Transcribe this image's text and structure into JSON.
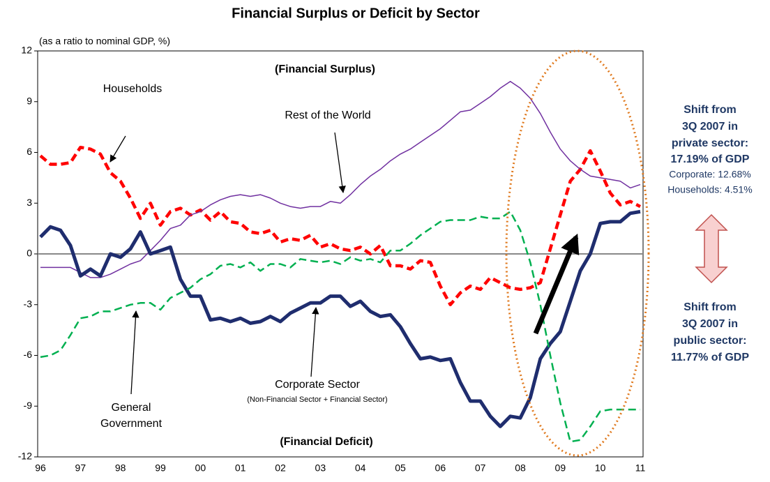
{
  "chart_data": {
    "type": "line",
    "title": "Financial Surplus or Deficit by Sector",
    "ylabel": "(as a ratio to nominal GDP, %)",
    "categories": [
      "96",
      null,
      null,
      null,
      "97",
      null,
      null,
      null,
      "98",
      null,
      null,
      null,
      "99",
      null,
      null,
      null,
      "00",
      null,
      null,
      null,
      "01",
      null,
      null,
      null,
      "02",
      null,
      null,
      null,
      "03",
      null,
      null,
      null,
      "04",
      null,
      null,
      null,
      "05",
      null,
      null,
      null,
      "06",
      null,
      null,
      null,
      "07",
      null,
      null,
      null,
      "08",
      null,
      null,
      null,
      "09",
      null,
      null,
      null,
      "10",
      null,
      null,
      null,
      "11"
    ],
    "ylim": [
      -12,
      12
    ],
    "yticks": [
      -12,
      -9,
      -6,
      -3,
      0,
      3,
      6,
      9,
      12
    ],
    "series": [
      {
        "name": "Households",
        "color": "#ff0000",
        "values": [
          5.8,
          5.3,
          5.3,
          5.4,
          6.3,
          6.2,
          5.9,
          4.8,
          4.3,
          3.3,
          2.1,
          3.0,
          1.7,
          2.5,
          2.7,
          2.3,
          2.6,
          2.0,
          2.5,
          1.9,
          1.8,
          1.3,
          1.2,
          1.4,
          0.7,
          0.9,
          0.8,
          1.1,
          0.4,
          0.6,
          0.3,
          0.2,
          0.4,
          0.0,
          0.5,
          -0.7,
          -0.7,
          -0.9,
          -0.4,
          -0.5,
          -1.9,
          -3.0,
          -2.3,
          -1.9,
          -2.1,
          -1.4,
          -1.7,
          -2.0,
          -2.1,
          -2.0,
          -1.7,
          0.3,
          2.3,
          4.3,
          5.0,
          6.1,
          4.9,
          3.6,
          2.9,
          3.1,
          2.8
        ]
      },
      {
        "name": "Rest of the World",
        "color": "#7030a0",
        "values": [
          -0.8,
          -0.8,
          -0.8,
          -0.8,
          -1.1,
          -1.4,
          -1.4,
          -1.2,
          -0.9,
          -0.6,
          -0.4,
          0.2,
          0.8,
          1.5,
          1.7,
          2.3,
          2.5,
          2.9,
          3.2,
          3.4,
          3.5,
          3.4,
          3.5,
          3.3,
          3.0,
          2.8,
          2.7,
          2.8,
          2.8,
          3.1,
          3.0,
          3.5,
          4.1,
          4.6,
          5.0,
          5.5,
          5.9,
          6.2,
          6.6,
          7.0,
          7.4,
          7.9,
          8.4,
          8.5,
          8.9,
          9.3,
          9.8,
          10.2,
          9.8,
          9.2,
          8.3,
          7.2,
          6.2,
          5.5,
          5.0,
          4.6,
          4.5,
          4.4,
          4.3,
          3.9,
          4.1
        ]
      },
      {
        "name": "Corporate Sector",
        "color": "#1f2d6e",
        "values": [
          1.0,
          1.6,
          1.4,
          0.5,
          -1.3,
          -0.9,
          -1.3,
          0.0,
          -0.2,
          0.3,
          1.3,
          0.0,
          0.2,
          0.4,
          -1.5,
          -2.5,
          -2.5,
          -3.9,
          -3.8,
          -4.0,
          -3.8,
          -4.1,
          -4.0,
          -3.7,
          -4.0,
          -3.5,
          -3.2,
          -2.9,
          -2.9,
          -2.5,
          -2.5,
          -3.1,
          -2.8,
          -3.4,
          -3.7,
          -3.6,
          -4.3,
          -5.3,
          -6.2,
          -6.1,
          -6.3,
          -6.2,
          -7.6,
          -8.7,
          -8.7,
          -9.6,
          -10.2,
          -9.6,
          -9.7,
          -8.5,
          -6.2,
          -5.3,
          -4.6,
          -2.8,
          -1.0,
          0.0,
          1.8,
          1.9,
          1.9,
          2.4,
          2.5
        ]
      },
      {
        "name_lines": [
          "General",
          "Government"
        ],
        "color": "#00b050",
        "values": [
          -6.1,
          -6.0,
          -5.7,
          -4.8,
          -3.8,
          -3.7,
          -3.4,
          -3.4,
          -3.2,
          -3.0,
          -2.9,
          -2.9,
          -3.3,
          -2.6,
          -2.3,
          -2.0,
          -1.5,
          -1.2,
          -0.7,
          -0.6,
          -0.8,
          -0.5,
          -1.0,
          -0.6,
          -0.6,
          -0.8,
          -0.3,
          -0.4,
          -0.5,
          -0.4,
          -0.6,
          -0.2,
          -0.4,
          -0.3,
          -0.5,
          0.2,
          0.2,
          0.6,
          1.1,
          1.5,
          1.9,
          2.0,
          2.0,
          2.0,
          2.2,
          2.1,
          2.1,
          2.5,
          1.4,
          -0.5,
          -3.0,
          -6.0,
          -8.8,
          -11.1,
          -11.0,
          -10.2,
          -9.3,
          -9.2,
          -9.2,
          -9.2,
          -9.2
        ]
      }
    ],
    "annotations": [
      "(Financial Surplus)",
      "(Financial Deficit)",
      "(Non-Financial Sector + Financial Sector)"
    ],
    "side_notes": {
      "private": [
        "Shift from",
        "3Q 2007 in",
        "private sector:",
        "17.19% of GDP"
      ],
      "private_detail": [
        "Corporate: 12.68%",
        "Households: 4.51%"
      ],
      "public": [
        "Shift from",
        "3Q 2007 in",
        "public sector:",
        "11.77% of GDP"
      ]
    }
  }
}
